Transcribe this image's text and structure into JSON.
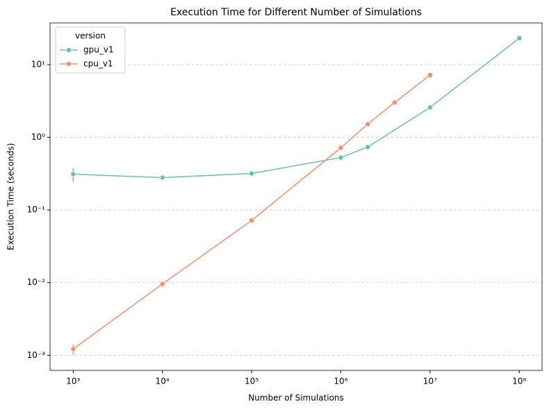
{
  "chart_data": {
    "type": "line",
    "title": "Execution Time for Different Number of Simulations",
    "x_label": "Number of Simulations",
    "y_label": "Execution Time (seconds)",
    "x_scale": "log",
    "y_scale": "log",
    "xlim": [
      550,
      180000000
    ],
    "ylim": [
      0.00062,
      37.5
    ],
    "xticks": [
      {
        "value": 1000,
        "label": "10³"
      },
      {
        "value": 10000,
        "label": "10⁴"
      },
      {
        "value": 100000,
        "label": "10⁵"
      },
      {
        "value": 1000000,
        "label": "10⁶"
      },
      {
        "value": 10000000,
        "label": "10⁷"
      },
      {
        "value": 100000000,
        "label": "10⁸"
      }
    ],
    "yticks": [
      {
        "value": 0.001,
        "label": "10⁻³"
      },
      {
        "value": 0.01,
        "label": "10⁻²"
      },
      {
        "value": 0.1,
        "label": "10⁻¹"
      },
      {
        "value": 1,
        "label": "10⁰"
      },
      {
        "value": 10,
        "label": "10¹"
      }
    ],
    "grid": "y",
    "legend_title": "version",
    "legend_position": "upper-left",
    "series": [
      {
        "name": "gpu_v1",
        "color": "#66c2a5",
        "x": [
          1000,
          10000,
          100000,
          1000000,
          2000000,
          10000000,
          100000000
        ],
        "values": [
          0.311,
          0.279,
          0.318,
          0.527,
          0.735,
          2.58,
          23.1
        ],
        "errors": [
          0.065,
          0.01,
          0.01,
          0.04,
          0.02,
          0.05,
          0.3
        ]
      },
      {
        "name": "cpu_v1",
        "color": "#fc8d62",
        "x": [
          1000,
          10000,
          100000,
          1000000,
          2000000,
          4000000,
          10000000
        ],
        "values": [
          0.00122,
          0.0096,
          0.0718,
          0.718,
          1.52,
          3.01,
          7.18
        ],
        "errors": [
          0.0002,
          0.0009,
          0.001,
          0.01,
          0.02,
          0.03,
          0.05
        ]
      }
    ]
  }
}
